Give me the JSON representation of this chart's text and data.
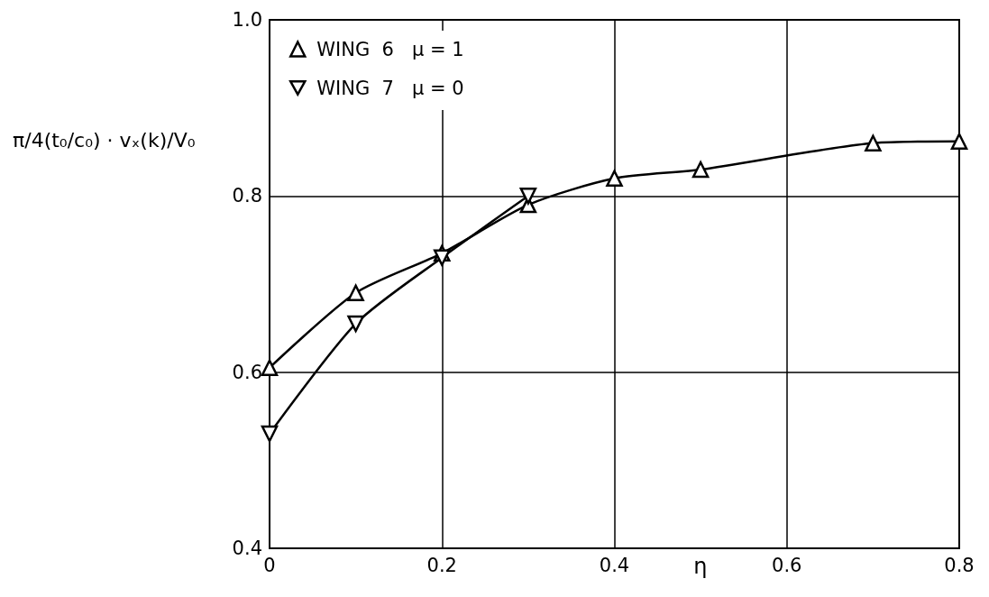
{
  "chart_data": {
    "type": "line",
    "xlabel": "η",
    "ylabel": "π/4(t₀/c₀) · vₓ(k)/V₀",
    "xlim": [
      0,
      0.8
    ],
    "xticks": [
      0,
      0.2,
      0.4,
      0.6,
      0.8
    ],
    "ylim": [
      0.4,
      1.0
    ],
    "yticks": [
      0.4,
      0.6,
      0.8,
      {
        "value": 1.0,
        "label": "1.0"
      }
    ],
    "grid": true,
    "legend": "top left",
    "line_style": "solid",
    "series": [
      {
        "name": "WING  6   μ = 1",
        "color": "#000000",
        "marker": "triangle",
        "x": [
          0,
          0.1,
          0.2,
          0.3,
          0.4,
          0.5,
          0.7,
          0.8
        ],
        "values": [
          0.605,
          0.69,
          0.735,
          0.79,
          0.82,
          0.83,
          0.86,
          0.862
        ]
      },
      {
        "name": "WING  7   μ = 0",
        "color": "#000000",
        "marker": "triangle-down",
        "x": [
          0,
          0.1,
          0.2,
          0.3
        ],
        "values": [
          0.53,
          0.655,
          0.73,
          0.8
        ]
      }
    ]
  }
}
